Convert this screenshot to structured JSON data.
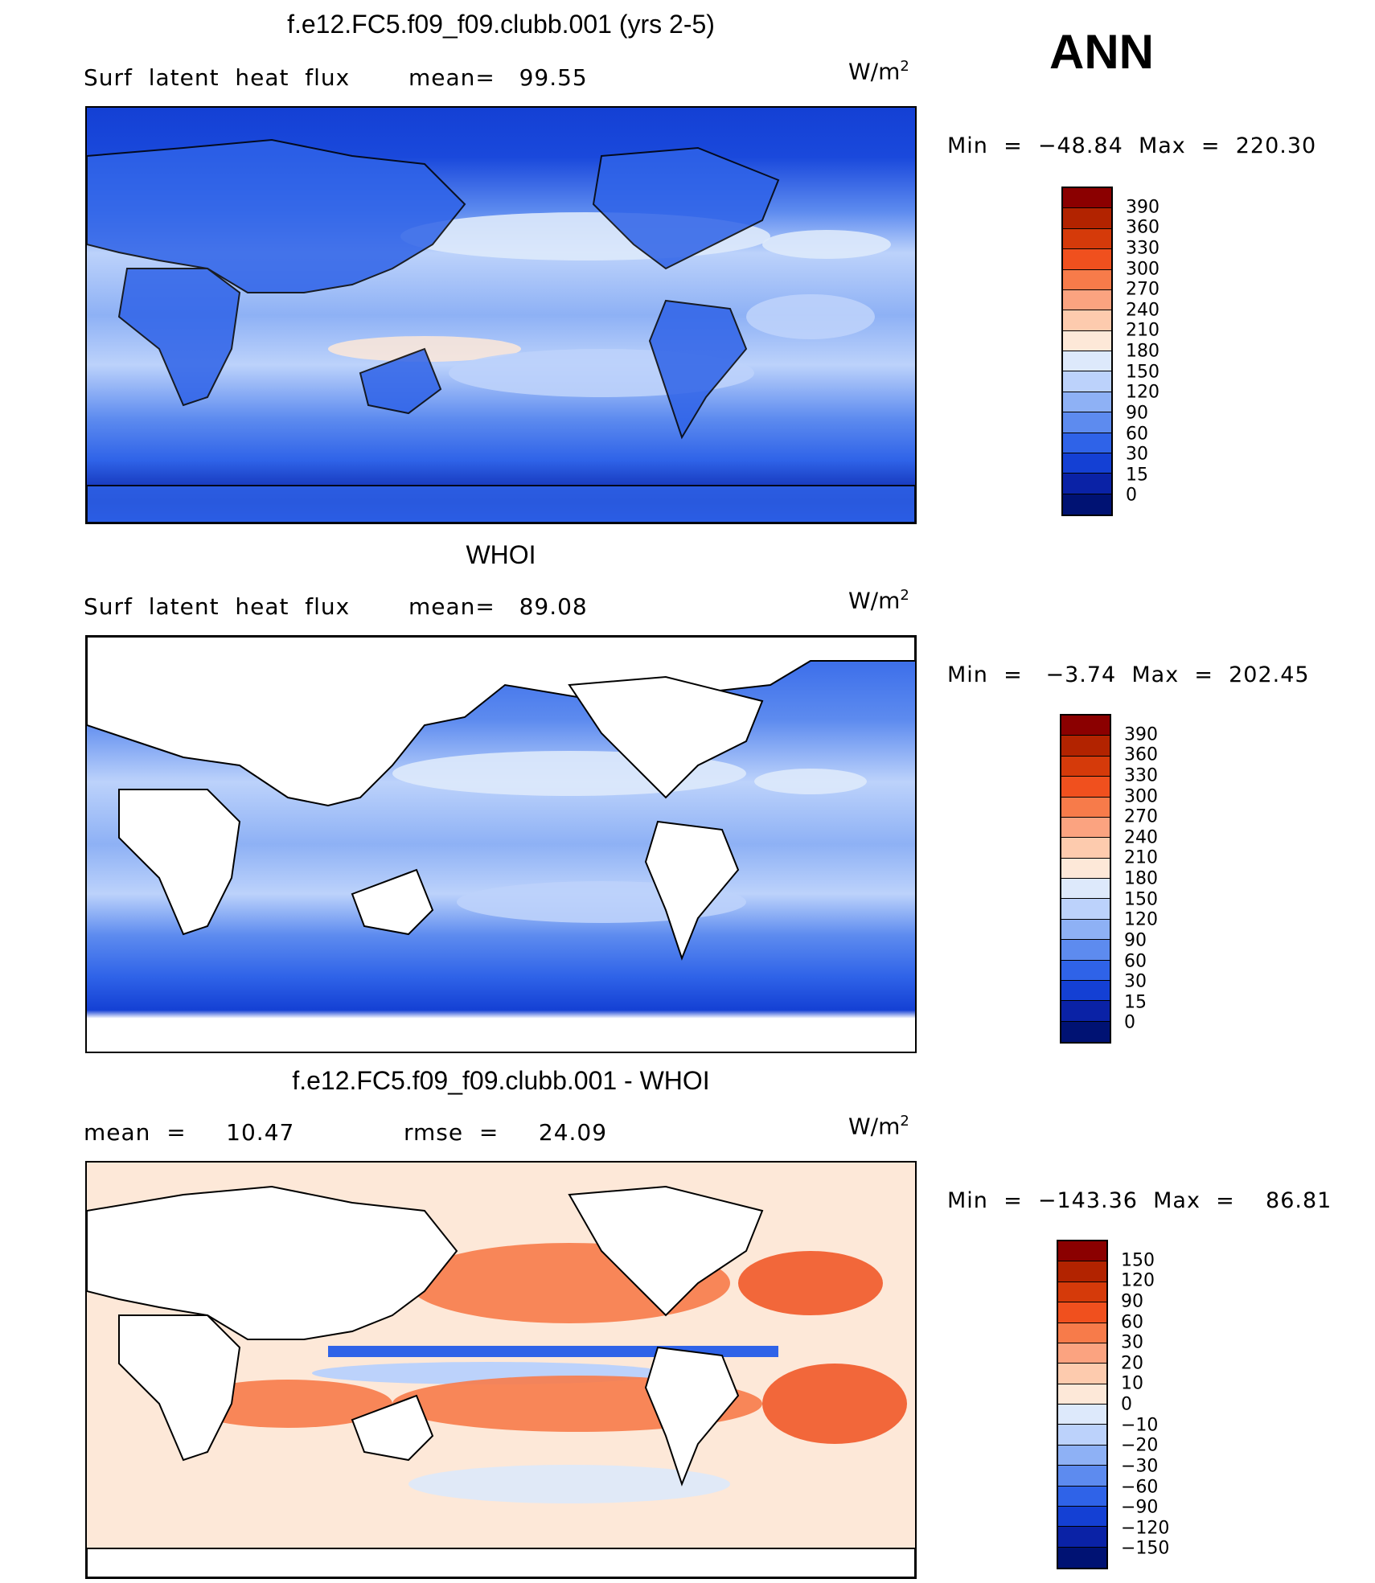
{
  "season": "ANN",
  "panels": [
    {
      "title": "f.e12.FC5.f09_f09.clubb.001 (yrs 2-5)",
      "left_label": "Surf  latent  heat  flux",
      "mid_label": "mean=   99.55",
      "units": "W/m",
      "units_sup": "2",
      "minmax": "Min  =  −48.84  Max  =  220.30",
      "colorbar": {
        "ticks": [
          "390",
          "360",
          "330",
          "300",
          "270",
          "240",
          "210",
          "180",
          "150",
          "120",
          "90",
          "60",
          "30",
          "15",
          "0"
        ],
        "colors": [
          "#8b0000",
          "#b22300",
          "#d53a0a",
          "#f0501e",
          "#f77b4a",
          "#fba380",
          "#fdcbae",
          "#fde8d8",
          "#dde9fb",
          "#bcd2fb",
          "#8eb1f5",
          "#5d8bef",
          "#2f63e8",
          "#1440d4",
          "#0a22a6",
          "#001273"
        ]
      }
    },
    {
      "title": "WHOI",
      "left_label": "Surf  latent  heat  flux",
      "mid_label": "mean=   89.08",
      "units": "W/m",
      "units_sup": "2",
      "minmax": "Min  =   −3.74  Max  =  202.45",
      "colorbar": {
        "ticks": [
          "390",
          "360",
          "330",
          "300",
          "270",
          "240",
          "210",
          "180",
          "150",
          "120",
          "90",
          "60",
          "30",
          "15",
          "0"
        ],
        "colors": [
          "#8b0000",
          "#b22300",
          "#d53a0a",
          "#f0501e",
          "#f77b4a",
          "#fba380",
          "#fdcbae",
          "#fde8d8",
          "#dde9fb",
          "#bcd2fb",
          "#8eb1f5",
          "#5d8bef",
          "#2f63e8",
          "#1440d4",
          "#0a22a6",
          "#001273"
        ]
      }
    },
    {
      "title": "f.e12.FC5.f09_f09.clubb.001 - WHOI",
      "left_label": "mean  =     10.47",
      "mid_label": "rmse  =     24.09",
      "units": "W/m",
      "units_sup": "2",
      "minmax": "Min  =  −143.36  Max  =    86.81",
      "colorbar": {
        "ticks": [
          "150",
          "120",
          "90",
          "60",
          "30",
          "20",
          "10",
          "0",
          "−10",
          "−20",
          "−30",
          "−60",
          "−90",
          "−120",
          "−150"
        ],
        "colors": [
          "#8b0000",
          "#b22300",
          "#d53a0a",
          "#f0501e",
          "#f77b4a",
          "#fba380",
          "#fdcbae",
          "#fde8d8",
          "#dde9fb",
          "#bcd2fb",
          "#8eb1f5",
          "#5d8bef",
          "#2f63e8",
          "#1440d4",
          "#0a22a6",
          "#001273"
        ]
      }
    }
  ]
}
